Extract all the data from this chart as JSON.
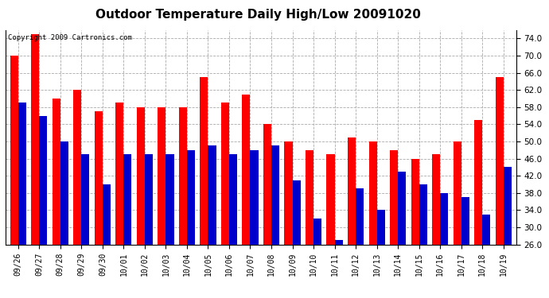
{
  "title": "Outdoor Temperature Daily High/Low 20091020",
  "copyright": "Copyright 2009 Cartronics.com",
  "dates": [
    "09/26",
    "09/27",
    "09/28",
    "09/29",
    "09/30",
    "10/01",
    "10/02",
    "10/03",
    "10/04",
    "10/05",
    "10/06",
    "10/07",
    "10/08",
    "10/09",
    "10/10",
    "10/11",
    "10/12",
    "10/13",
    "10/14",
    "10/15",
    "10/16",
    "10/17",
    "10/18",
    "10/19"
  ],
  "highs": [
    70.0,
    75.0,
    60.0,
    62.0,
    57.0,
    59.0,
    58.0,
    58.0,
    58.0,
    65.0,
    59.0,
    61.0,
    54.0,
    50.0,
    48.0,
    47.0,
    51.0,
    50.0,
    48.0,
    46.0,
    47.0,
    50.0,
    55.0,
    65.0
  ],
  "lows": [
    59.0,
    56.0,
    50.0,
    47.0,
    40.0,
    47.0,
    47.0,
    47.0,
    48.0,
    49.0,
    47.0,
    48.0,
    49.0,
    41.0,
    32.0,
    27.0,
    39.0,
    34.0,
    43.0,
    40.0,
    38.0,
    37.0,
    33.0,
    44.0
  ],
  "high_color": "#ff0000",
  "low_color": "#0000cc",
  "ylim": [
    26.0,
    76.0
  ],
  "yticks": [
    26.0,
    30.0,
    34.0,
    38.0,
    42.0,
    46.0,
    50.0,
    54.0,
    58.0,
    62.0,
    66.0,
    70.0,
    74.0
  ],
  "background_color": "#ffffff",
  "plot_bg_color": "#ffffff",
  "grid_color": "#aaaaaa",
  "title_fontsize": 11,
  "bar_width": 0.38
}
